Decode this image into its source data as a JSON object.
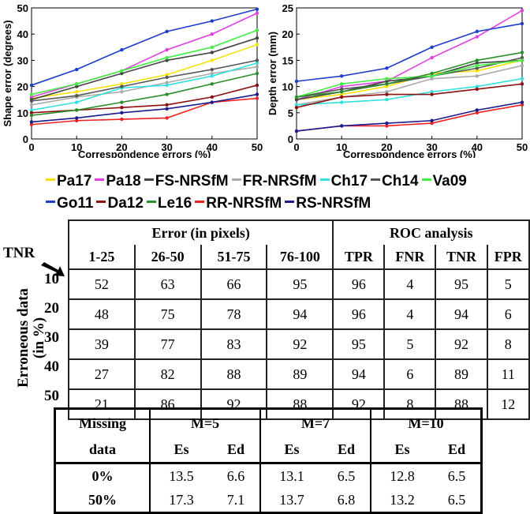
{
  "chart_data": [
    {
      "type": "line",
      "xlabel": "Correspondence errors (%)",
      "ylabel": "Shape error (degrees)",
      "x": [
        0,
        10,
        20,
        30,
        40,
        50
      ],
      "ylim": [
        0,
        50
      ],
      "yticks": [
        0,
        10,
        20,
        30,
        40,
        50
      ],
      "series": [
        {
          "name": "Pa17",
          "color": "#f5e20d",
          "values": [
            15.5,
            18,
            21,
            24.5,
            30,
            36
          ]
        },
        {
          "name": "Pa18",
          "color": "#e23fe2",
          "values": [
            16,
            21,
            26,
            34,
            40,
            48
          ]
        },
        {
          "name": "FS-NRSfM",
          "color": "#444444",
          "values": [
            15,
            20,
            25,
            30,
            33,
            38.5
          ]
        },
        {
          "name": "FR-NRSfM",
          "color": "#aaaaaa",
          "values": [
            13,
            16,
            18,
            21.5,
            25,
            27.5
          ]
        },
        {
          "name": "Ch17",
          "color": "#33e0e0",
          "values": [
            11,
            14,
            19.5,
            20.5,
            24,
            29
          ]
        },
        {
          "name": "Ch14",
          "color": "#555555",
          "values": [
            14.5,
            16.5,
            20,
            23.5,
            26.5,
            30
          ]
        },
        {
          "name": "Va09",
          "color": "#44ee44",
          "values": [
            17,
            21,
            26,
            31,
            35,
            41.5
          ]
        },
        {
          "name": "Go11",
          "color": "#1e3ccc",
          "values": [
            20.5,
            26.5,
            34,
            41,
            45,
            49.5
          ]
        },
        {
          "name": "Da12",
          "color": "#8b1010",
          "values": [
            10,
            11,
            12,
            13,
            16,
            20.5
          ]
        },
        {
          "name": "Le16",
          "color": "#2a8f2a",
          "values": [
            9,
            11,
            14,
            17,
            21,
            25
          ]
        },
        {
          "name": "RR-NRSfM",
          "color": "#ee2222",
          "values": [
            5.5,
            7,
            7.5,
            8,
            14,
            15.5
          ]
        },
        {
          "name": "RS-NRSfM",
          "color": "#1a1a8c",
          "values": [
            6.5,
            8,
            10,
            11.5,
            14,
            17
          ]
        }
      ]
    },
    {
      "type": "line",
      "xlabel": "Correspondence errors (%)",
      "ylabel": "Depth error (mm)",
      "x": [
        0,
        10,
        20,
        30,
        40,
        50
      ],
      "ylim": [
        0,
        25
      ],
      "yticks": [
        0,
        5,
        10,
        15,
        20,
        25
      ],
      "series": [
        {
          "name": "Pa17",
          "color": "#f5e20d",
          "values": [
            7.5,
            8.5,
            10,
            12.5,
            13,
            15
          ]
        },
        {
          "name": "Pa18",
          "color": "#e23fe2",
          "values": [
            7.5,
            10,
            11,
            15.5,
            19.5,
            24.5
          ]
        },
        {
          "name": "FS-NRSfM",
          "color": "#444444",
          "values": [
            7.5,
            9,
            11,
            12,
            14.5,
            15
          ]
        },
        {
          "name": "FR-NRSfM",
          "color": "#aaaaaa",
          "values": [
            6.5,
            8,
            9,
            11.5,
            12,
            14
          ]
        },
        {
          "name": "Ch17",
          "color": "#33e0e0",
          "values": [
            6.5,
            7,
            7.5,
            9,
            10,
            11.5
          ]
        },
        {
          "name": "Ch14",
          "color": "#555555",
          "values": [
            8,
            9.5,
            10.5,
            12,
            13.5,
            15.5
          ]
        },
        {
          "name": "Va09",
          "color": "#44ee44",
          "values": [
            8,
            10.5,
            11.5,
            12,
            14,
            15
          ]
        },
        {
          "name": "Go11",
          "color": "#1e3ccc",
          "values": [
            11,
            12,
            13.5,
            17.5,
            20.5,
            22
          ]
        },
        {
          "name": "Da12",
          "color": "#8b1010",
          "values": [
            6,
            8,
            8.5,
            8.5,
            9.5,
            10.5
          ]
        },
        {
          "name": "Le16",
          "color": "#2a8f2a",
          "values": [
            8,
            9,
            10.5,
            12.5,
            15,
            16.5
          ]
        },
        {
          "name": "RR-NRSfM",
          "color": "#ee2222",
          "values": [
            1.5,
            2.5,
            2.5,
            3,
            5,
            6.5
          ]
        },
        {
          "name": "RS-NRSfM",
          "color": "#1a1a8c",
          "values": [
            1.5,
            2.5,
            3,
            3.5,
            5.5,
            7
          ]
        }
      ]
    },
    {
      "type": "table",
      "name": "roc",
      "corner_label": "TNR",
      "row_axis_label_1": "Erroneous data",
      "row_axis_label_2": "(in %)",
      "group_error": "Error (in pixels)",
      "group_roc": "ROC analysis",
      "columns": [
        "1-25",
        "26-50",
        "51-75",
        "76-100",
        "TPR",
        "FNR",
        "TNR",
        "FPR"
      ],
      "rows": [
        {
          "label": "10",
          "values": [
            "52",
            "63",
            "66",
            "95",
            "96",
            "4",
            "95",
            "5"
          ]
        },
        {
          "label": "20",
          "values": [
            "48",
            "75",
            "78",
            "94",
            "96",
            "4",
            "94",
            "6"
          ]
        },
        {
          "label": "30",
          "values": [
            "39",
            "77",
            "83",
            "92",
            "95",
            "5",
            "92",
            "8"
          ]
        },
        {
          "label": "40",
          "values": [
            "27",
            "82",
            "88",
            "89",
            "94",
            "6",
            "89",
            "11"
          ]
        },
        {
          "label": "50",
          "values": [
            "21",
            "86",
            "92",
            "88",
            "92",
            "8",
            "88",
            "12"
          ]
        }
      ]
    },
    {
      "type": "table",
      "name": "missing",
      "header_1": "Missing",
      "header_2": "data",
      "groups": [
        "M=5",
        "M=7",
        "M=10"
      ],
      "subheaders": [
        "Es",
        "Ed",
        "Es",
        "Ed",
        "Es",
        "Ed"
      ],
      "rows": [
        {
          "label": "0%",
          "values": [
            "13.5",
            "6.6",
            "13.1",
            "6.5",
            "12.8",
            "6.5"
          ]
        },
        {
          "label": "50%",
          "values": [
            "17.3",
            "7.1",
            "13.7",
            "6.8",
            "13.2",
            "6.5"
          ]
        }
      ]
    }
  ]
}
